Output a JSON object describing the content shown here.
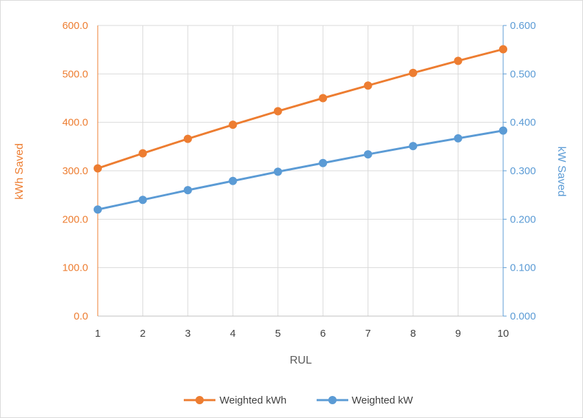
{
  "chart_data": {
    "type": "line",
    "title": "",
    "xlabel": "RUL",
    "x": [
      1,
      2,
      3,
      4,
      5,
      6,
      7,
      8,
      9,
      10
    ],
    "y_left": {
      "label": "kWh Saved",
      "ylim": [
        0,
        600
      ],
      "ticks": [
        "0.0",
        "100.0",
        "200.0",
        "300.0",
        "400.0",
        "500.0",
        "600.0"
      ],
      "color": "#ED7D31"
    },
    "y_right": {
      "label": "kW Saved",
      "ylim": [
        0,
        0.6
      ],
      "ticks": [
        "0.000",
        "0.100",
        "0.200",
        "0.300",
        "0.400",
        "0.500",
        "0.600"
      ],
      "color": "#5B9BD5"
    },
    "grid": true,
    "legend_position": "bottom",
    "series": [
      {
        "name": "Weighted kWh",
        "axis": "left",
        "color": "#ED7D31",
        "values": [
          305,
          336,
          366,
          395,
          423,
          450,
          476,
          502,
          527,
          551
        ]
      },
      {
        "name": "Weighted kW",
        "axis": "right",
        "color": "#5B9BD5",
        "values": [
          0.22,
          0.24,
          0.26,
          0.279,
          0.298,
          0.316,
          0.334,
          0.351,
          0.367,
          0.383
        ]
      }
    ]
  }
}
